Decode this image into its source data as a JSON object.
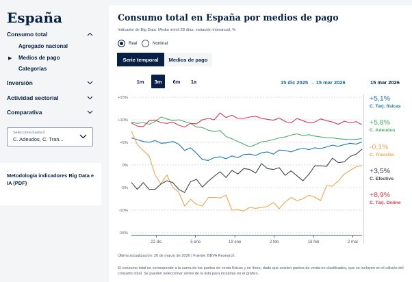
{
  "sidebar": {
    "country": "España",
    "sections": [
      {
        "label": "Consumo total",
        "chevron": "chevron-up-icon"
      },
      {
        "label": "Inversión",
        "chevron": "chevron-down-icon"
      },
      {
        "label": "Actividad sectorial",
        "chevron": "chevron-down-icon"
      },
      {
        "label": "Comparativa",
        "chevron": "chevron-down-icon"
      }
    ],
    "subitems": [
      "Agregado nacional",
      "Medios de pago",
      "Categorías"
    ],
    "active_subitem": "Medios de pago",
    "select": {
      "label": "Selecciona hasta 6",
      "value": "C. Adeudos, C. Tran..."
    },
    "methodology": "Metodología indicadores Big Data e IA (PDF)"
  },
  "main": {
    "title": "Consumo total en España por medios de pago",
    "subtitle": "Indicador de Big Data. Media móvil 28 días, variación interanual, %",
    "radios": [
      "Real",
      "Nominal"
    ],
    "tabs": [
      "Serie temporal",
      "Medios de pago"
    ],
    "ranges": [
      "1m",
      "3m",
      "6m",
      "1a"
    ],
    "active_range": "3m",
    "date_range": "15 dic 2025  →  15 mar 2026",
    "legend_date": "15 mar 2026",
    "footnote_update": "Última actualización: 20 de marzo de 2026 |  Fuente: BBVA Research.",
    "footnote_note": "El consumo total no corresponde a la suma de los puntos de venta físicos y en línea, dado que existen puntos de venta no clasificados, que se incluyen en el cálculo del consumo total. Se pueden seleccionar series de la lista para incluirlas en el gráfico."
  },
  "chart_data": {
    "type": "line",
    "ylim": [
      -15,
      15
    ],
    "yticks": [
      "+15%",
      "+10%",
      "+5%",
      "0%",
      "-5%",
      "-10%",
      "-15%"
    ],
    "xticks": [
      "22 dic",
      "5 ene",
      "19 ene",
      "2 feb",
      "16 feb",
      "2 mar"
    ],
    "series": [
      {
        "name": "C. Tarj. físicas",
        "color": "#1973b8",
        "last": "+5,1%",
        "values": [
          6,
          5.6,
          5.2,
          5,
          5.4,
          4.8,
          4.9,
          5.2,
          4.6,
          3.2,
          3.8,
          2.6,
          1.2,
          1,
          1.6,
          1.8,
          1.4,
          2,
          1.6,
          2.3,
          2.4,
          2.1,
          2.7,
          2.9,
          2.4,
          3.3,
          3.2,
          2.9,
          3.4,
          3.7,
          3.4,
          3.8,
          3.6,
          4,
          4.4,
          4.1,
          4.5,
          4.8,
          4.6,
          5.1
        ]
      },
      {
        "name": "C. Adeudos",
        "color": "#48ae64",
        "last": "+5,8%",
        "values": [
          9.5,
          9.2,
          9.4,
          9,
          9.6,
          10.6,
          10.2,
          9.8,
          10,
          9.6,
          9.2,
          8.4,
          8.3,
          7.7,
          7.4,
          7.6,
          6.3,
          5.8,
          5.2,
          4.6,
          4,
          4.5,
          5.1,
          5.3,
          5.6,
          6,
          6.2,
          6.6,
          6.9,
          6.5,
          6.7,
          6.4,
          6.2,
          6,
          6,
          5.8,
          5.7,
          5.6,
          5.7,
          5.8
        ]
      },
      {
        "name": "C. Transfer.",
        "color": "#f8a34a",
        "last": "-0,1%",
        "values": [
          7.5,
          4.5,
          3.2,
          2,
          -2.2,
          -4.2,
          -2.2,
          -5,
          -6,
          -9.1,
          -7.6,
          -8.7,
          -9.1,
          -7.2,
          -7.2,
          -7.3,
          -6.7,
          -10,
          -9.9,
          -10.2,
          -9.4,
          -9.6,
          -9.4,
          -9.2,
          -8.3,
          -9.7,
          -8.2,
          -7.2,
          -7.9,
          -7.5,
          -6.7,
          -7.1,
          -7.9,
          -4.6,
          -4.7,
          -3.5,
          -2,
          -1.2,
          -0.4,
          -0.1
        ]
      },
      {
        "name": "C. Efectivo",
        "color": "#3d4150",
        "last": "+3,5%",
        "values": [
          -3.9,
          -5.4,
          -3.9,
          -5.4,
          -5.4,
          -4.2,
          -3.5,
          -3.9,
          -5.4,
          -6.1,
          -3.7,
          -3.2,
          -4.9,
          -3.6,
          -2.5,
          -1.5,
          -2.8,
          -1.2,
          -2,
          -0.8,
          -1,
          -1.8,
          0.3,
          -0.8,
          -1,
          -0.6,
          -2.3,
          -1.3,
          -2.4,
          -3.5,
          -2.1,
          -0.2,
          -0.2,
          -0.3,
          1.5,
          0.5,
          0.7,
          1.9,
          2.4,
          3.5
        ]
      },
      {
        "name": "C. Tarj. Online",
        "color": "#da3851",
        "last": "+8,9%",
        "values": [
          9.3,
          8.6,
          8.5,
          9.8,
          9.9,
          9.4,
          9.2,
          9.5,
          8.8,
          8.4,
          9.2,
          9.1,
          10,
          10.3,
          10,
          11.5,
          10.5,
          11,
          10.3,
          10.3,
          10.6,
          10.8,
          10.3,
          10.1,
          9.9,
          10.4,
          9.6,
          9.3,
          10.3,
          9.8,
          9.3,
          9.5,
          10.2,
          9.8,
          9.5,
          9,
          9.7,
          9.3,
          9.6,
          8.9
        ]
      }
    ]
  },
  "colors": {
    "navy": "#072146",
    "blue": "#1464a5",
    "panel": "#ffffff",
    "page": "#f4f5f7"
  }
}
